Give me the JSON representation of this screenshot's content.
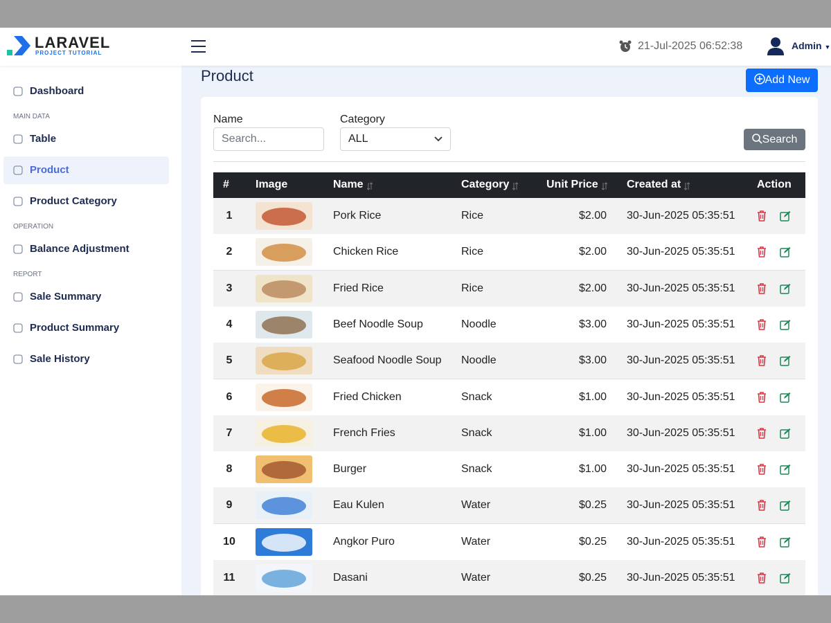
{
  "header": {
    "logo_title": "LARAVEL",
    "logo_subtitle": "PROJECT TUTORIAL",
    "datetime": "21-Jul-2025 06:52:38",
    "user": "Admin"
  },
  "sidebar": {
    "top": "Dashboard",
    "groups": [
      {
        "heading": "MAIN DATA",
        "items": [
          "Table",
          "Product",
          "Product Category"
        ]
      },
      {
        "heading": "OPERATION",
        "items": [
          "Balance Adjustment"
        ]
      },
      {
        "heading": "REPORT",
        "items": [
          "Sale Summary",
          "Product Summary",
          "Sale History"
        ]
      }
    ]
  },
  "page": {
    "title": "Product",
    "add_button": "Add New"
  },
  "filters": {
    "name_label": "Name",
    "name_placeholder": "Search...",
    "category_label": "Category",
    "category_value": "ALL",
    "search_button": "Search"
  },
  "table": {
    "columns": [
      "#",
      "Image",
      "Name",
      "Category",
      "Unit Price",
      "Created at",
      "Action"
    ],
    "rows": [
      [
        1,
        "Pork Rice",
        "Rice",
        "$2.00",
        "30-Jun-2025 05:35:51"
      ],
      [
        2,
        "Chicken Rice",
        "Rice",
        "$2.00",
        "30-Jun-2025 05:35:51"
      ],
      [
        3,
        "Fried Rice",
        "Rice",
        "$2.00",
        "30-Jun-2025 05:35:51"
      ],
      [
        4,
        "Beef Noodle Soup",
        "Noodle",
        "$3.00",
        "30-Jun-2025 05:35:51"
      ],
      [
        5,
        "Seafood Noodle Soup",
        "Noodle",
        "$3.00",
        "30-Jun-2025 05:35:51"
      ],
      [
        6,
        "Fried Chicken",
        "Snack",
        "$1.00",
        "30-Jun-2025 05:35:51"
      ],
      [
        7,
        "French Fries",
        "Snack",
        "$1.00",
        "30-Jun-2025 05:35:51"
      ],
      [
        8,
        "Burger",
        "Snack",
        "$1.00",
        "30-Jun-2025 05:35:51"
      ],
      [
        9,
        "Eau Kulen",
        "Water",
        "$0.25",
        "30-Jun-2025 05:35:51"
      ],
      [
        10,
        "Angkor Puro",
        "Water",
        "$0.25",
        "30-Jun-2025 05:35:51"
      ],
      [
        11,
        "Dasani",
        "Water",
        "$0.25",
        "30-Jun-2025 05:35:51"
      ]
    ]
  }
}
